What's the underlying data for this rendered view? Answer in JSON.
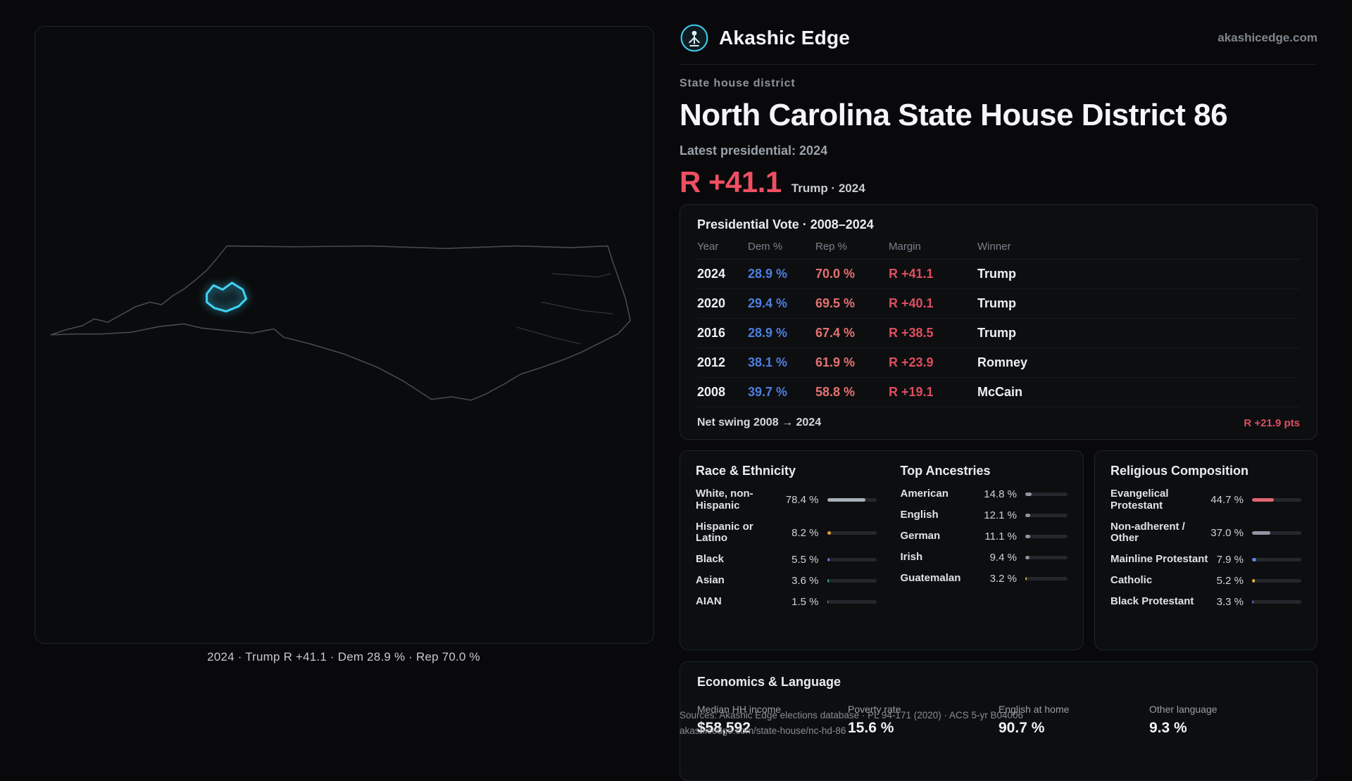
{
  "header": {
    "brand": "Akashic Edge",
    "site": "akashicedge.com"
  },
  "hero": {
    "kicker": "State house district",
    "title": "North Carolina State House District 86",
    "latest_label": "Latest presidential: 2024",
    "margin_value": "R +41.1",
    "margin_detail": "Trump · 2024"
  },
  "map": {
    "caption": "2024 · Trump R +41.1 · Dem 28.9 % · Rep 70.0 %",
    "accent_color": "#3fd0f2"
  },
  "presidential": {
    "title": "Presidential Vote · 2008–2024",
    "columns": [
      "Year",
      "Dem %",
      "Rep %",
      "Margin",
      "Winner"
    ],
    "rows": [
      {
        "year": "2024",
        "dem": "28.9 %",
        "rep": "70.0 %",
        "margin": "R +41.1",
        "winner": "Trump"
      },
      {
        "year": "2020",
        "dem": "29.4 %",
        "rep": "69.5 %",
        "margin": "R +40.1",
        "winner": "Trump"
      },
      {
        "year": "2016",
        "dem": "28.9 %",
        "rep": "67.4 %",
        "margin": "R +38.5",
        "winner": "Trump"
      },
      {
        "year": "2012",
        "dem": "38.1 %",
        "rep": "61.9 %",
        "margin": "R +23.9",
        "winner": "Romney"
      },
      {
        "year": "2008",
        "dem": "39.7 %",
        "rep": "58.8 %",
        "margin": "R +19.1",
        "winner": "McCain"
      }
    ],
    "net_swing_label": "Net swing 2008 → 2024",
    "net_swing_value": "R +21.9 pts",
    "dem_color": "#4d7fe0",
    "rep_color": "#e57272",
    "margin_color": "#dd4f60"
  },
  "race": {
    "title": "Race & Ethnicity",
    "items": [
      {
        "label": "White, non-Hispanic",
        "value": "78.4 %",
        "pct": 78.4,
        "color": "#a9b0ba"
      },
      {
        "label": "Hispanic or Latino",
        "value": "8.2 %",
        "pct": 8.2,
        "color": "#e09c3c"
      },
      {
        "label": "Black",
        "value": "5.5 %",
        "pct": 5.5,
        "color": "#6f6bd8"
      },
      {
        "label": "Asian",
        "value": "3.6 %",
        "pct": 3.6,
        "color": "#39b97e"
      },
      {
        "label": "AIAN",
        "value": "1.5 %",
        "pct": 1.5,
        "color": "#a9b0ba"
      }
    ]
  },
  "ancestries": {
    "title": "Top Ancestries",
    "items": [
      {
        "label": "American",
        "value": "14.8 %",
        "pct": 14.8,
        "color": "#8e96a2"
      },
      {
        "label": "English",
        "value": "12.1 %",
        "pct": 12.1,
        "color": "#8e96a2"
      },
      {
        "label": "German",
        "value": "11.1 %",
        "pct": 11.1,
        "color": "#8e96a2"
      },
      {
        "label": "Irish",
        "value": "9.4 %",
        "pct": 9.4,
        "color": "#8e96a2"
      },
      {
        "label": "Guatemalan",
        "value": "3.2 %",
        "pct": 3.2,
        "color": "#e0b23c"
      }
    ]
  },
  "religion": {
    "title": "Religious Composition",
    "items": [
      {
        "label": "Evangelical Protestant",
        "value": "44.7 %",
        "pct": 44.7,
        "color": "#e06673"
      },
      {
        "label": "Non-adherent / Other",
        "value": "37.0 %",
        "pct": 37.0,
        "color": "#8e96a2"
      },
      {
        "label": "Mainline Protestant",
        "value": "7.9 %",
        "pct": 7.9,
        "color": "#5b87dd"
      },
      {
        "label": "Catholic",
        "value": "5.2 %",
        "pct": 5.2,
        "color": "#e0b23c"
      },
      {
        "label": "Black Protestant",
        "value": "3.3 %",
        "pct": 3.3,
        "color": "#6f6bd8"
      }
    ]
  },
  "economics": {
    "title": "Economics & Language",
    "stats": [
      {
        "label": "Median HH income",
        "value": "$58,592"
      },
      {
        "label": "Poverty rate",
        "value": "15.6 %"
      },
      {
        "label": "English at home",
        "value": "90.7 %"
      },
      {
        "label": "Other language",
        "value": "9.3 %"
      }
    ]
  },
  "footer": {
    "sources_line": "Sources: Akashic Edge elections database · PL 94-171 (2020) · ACS 5-yr B04006",
    "permalink": "akashicedge.com/state-house/nc-hd-86"
  }
}
